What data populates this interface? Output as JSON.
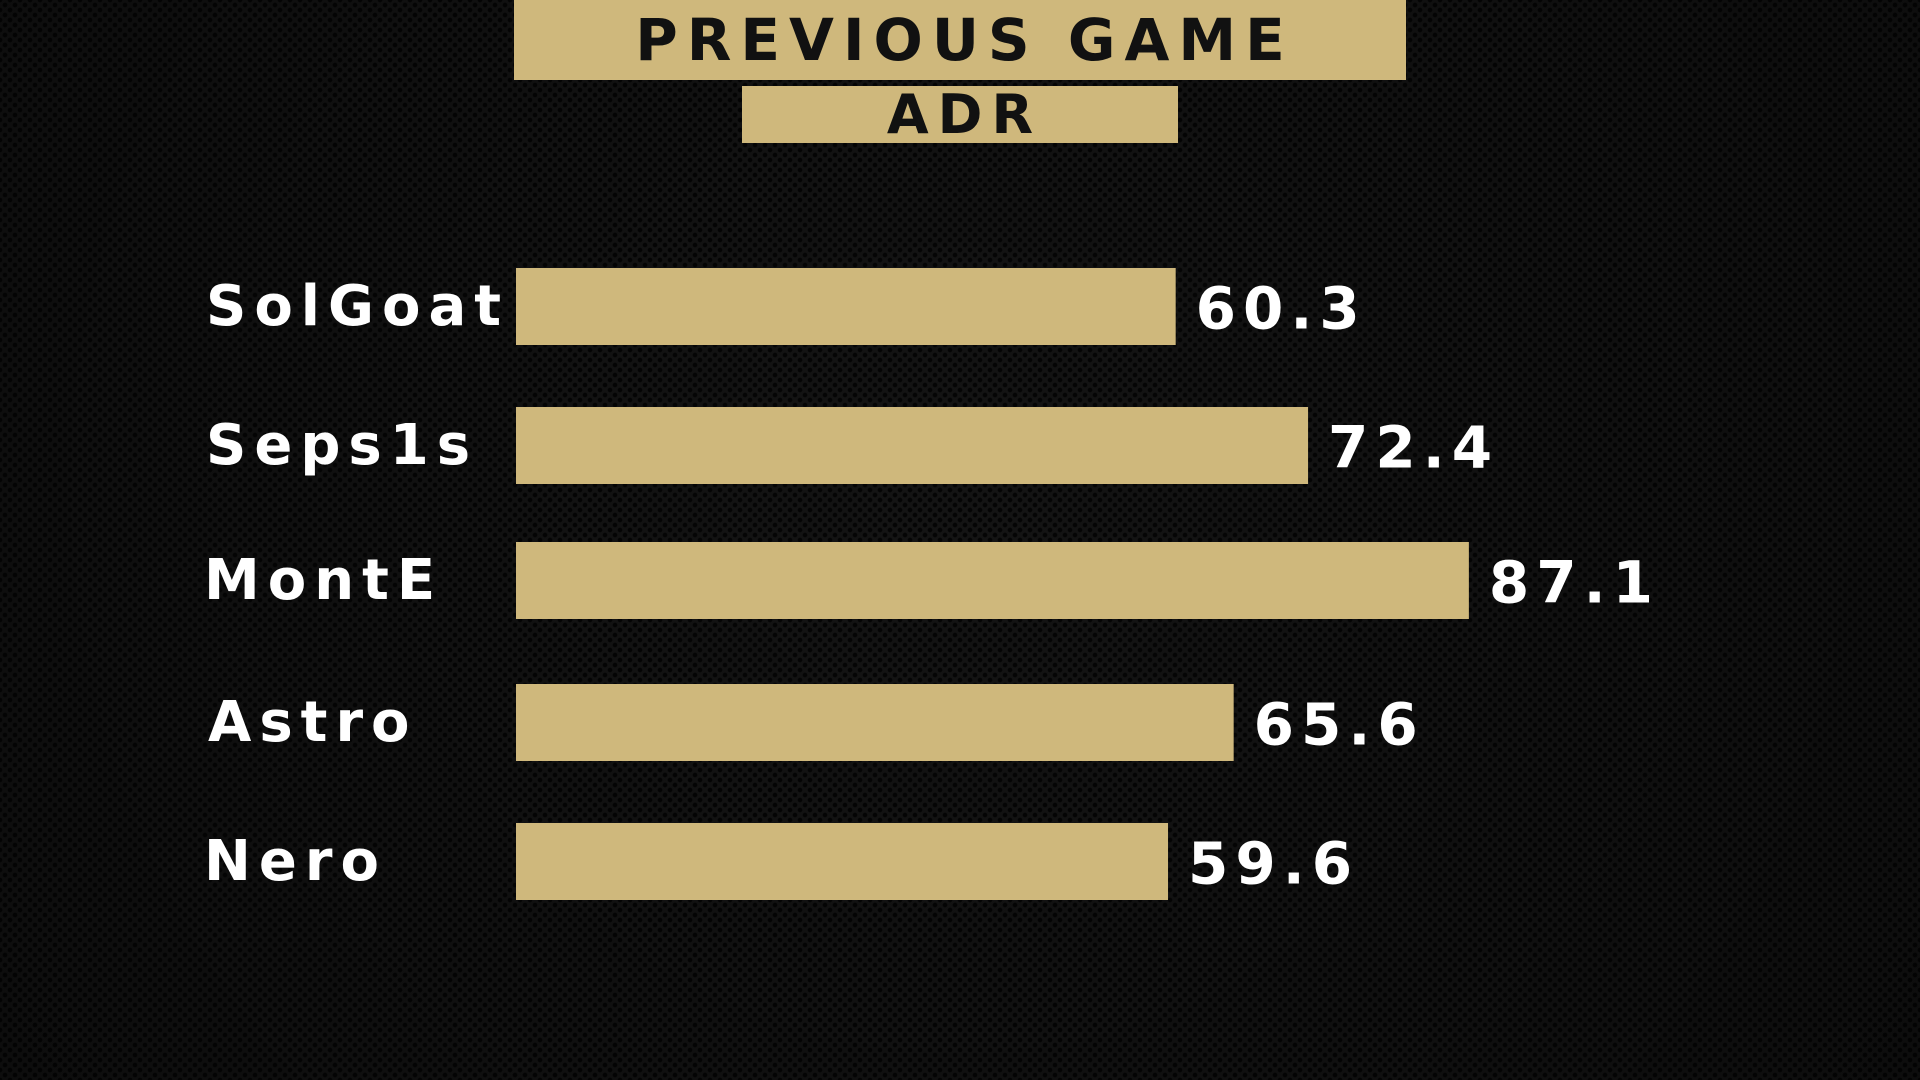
{
  "header": {
    "title": "PREVIOUS GAME",
    "subtitle": "ADR"
  },
  "colors": {
    "accent": "#cfb87c",
    "background": "#141414",
    "label_text": "#ffffff",
    "header_text": "#111111"
  },
  "chart_data": {
    "type": "bar",
    "orientation": "horizontal",
    "categories": [
      "SolGoat",
      "Seps1s",
      "MontE",
      "Astro",
      "Nero"
    ],
    "values": [
      60.3,
      72.4,
      87.1,
      65.6,
      59.6
    ],
    "value_labels": [
      "60.3",
      "72.4",
      "87.1",
      "65.6",
      "59.6"
    ],
    "title": "PREVIOUS GAME",
    "subtitle": "ADR",
    "xlabel": "",
    "ylabel": "",
    "grid": false,
    "legend": "none"
  }
}
